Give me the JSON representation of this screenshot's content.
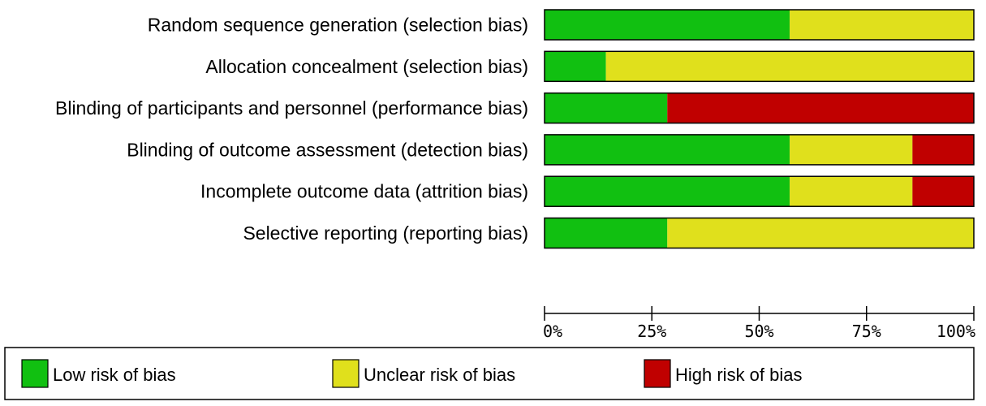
{
  "chart_data": {
    "type": "bar",
    "orientation": "horizontal",
    "stacked": "percent",
    "categories": [
      "Random sequence generation (selection bias)",
      "Allocation concealment (selection bias)",
      "Blinding of participants and personnel (performance bias)",
      "Blinding of outcome assessment (detection bias)",
      "Incomplete outcome data (attrition bias)",
      "Selective reporting (reporting bias)"
    ],
    "series": [
      {
        "name": "Low risk of bias",
        "color": "#11c011",
        "values": [
          57.1,
          14.3,
          28.6,
          57.1,
          57.1,
          28.6
        ]
      },
      {
        "name": "Unclear risk of bias",
        "color": "#e0e01c",
        "values": [
          42.9,
          85.7,
          0,
          28.6,
          28.6,
          71.4
        ]
      },
      {
        "name": "High risk of bias",
        "color": "#c00000",
        "values": [
          0,
          0,
          71.4,
          14.3,
          14.3,
          0
        ]
      }
    ],
    "xlim": [
      0,
      100
    ],
    "xticks": [
      0,
      25,
      50,
      75,
      100
    ],
    "xtick_labels": [
      "0%",
      "25%",
      "50%",
      "75%",
      "100%"
    ],
    "legend_position": "bottom",
    "grid": false
  }
}
